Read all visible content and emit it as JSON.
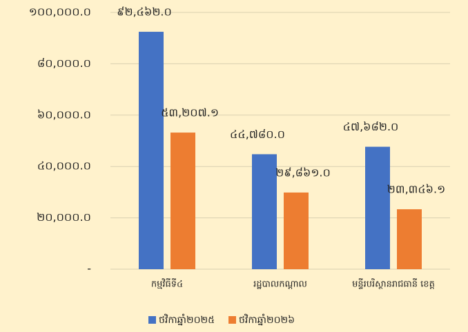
{
  "chart_data": {
    "type": "bar",
    "categories": [
      "កម្មវិធីទី៤",
      "រដ្ឋបាលកណ្តាល",
      "មន្ទីរបរិស្ថានរាជធានី ខេត្ត"
    ],
    "series": [
      {
        "name": "ថវិកាឆ្នាំ២០២៥",
        "color": "#4472c4",
        "values": [
          92462.0,
          44780.0,
          47682.0
        ],
        "value_labels": [
          "៩២,៤៦២.០",
          "៤៤,៧៨០.០",
          "៤៧,៦៨២.០"
        ]
      },
      {
        "name": "ថវិកាឆ្នាំ២០២៦",
        "color": "#ed7d31",
        "values": [
          53207.1,
          29861.0,
          23346.1
        ],
        "value_labels": [
          "៥៣,២០៧.១",
          "២៩,៨៦១.០",
          "២៣,៣៤៦.១"
        ]
      }
    ],
    "ylim": [
      0,
      100000
    ],
    "yticks": [
      {
        "value": 0,
        "label": "-"
      },
      {
        "value": 20000,
        "label": "២០,០០០.០"
      },
      {
        "value": 40000,
        "label": "៤០,០០០.០"
      },
      {
        "value": 60000,
        "label": "៦០,០០០.០"
      },
      {
        "value": 80000,
        "label": "៨០,០០០.០"
      },
      {
        "value": 100000,
        "label": "១០០,០០០.០"
      }
    ],
    "grid": true,
    "legend": "bottom"
  }
}
